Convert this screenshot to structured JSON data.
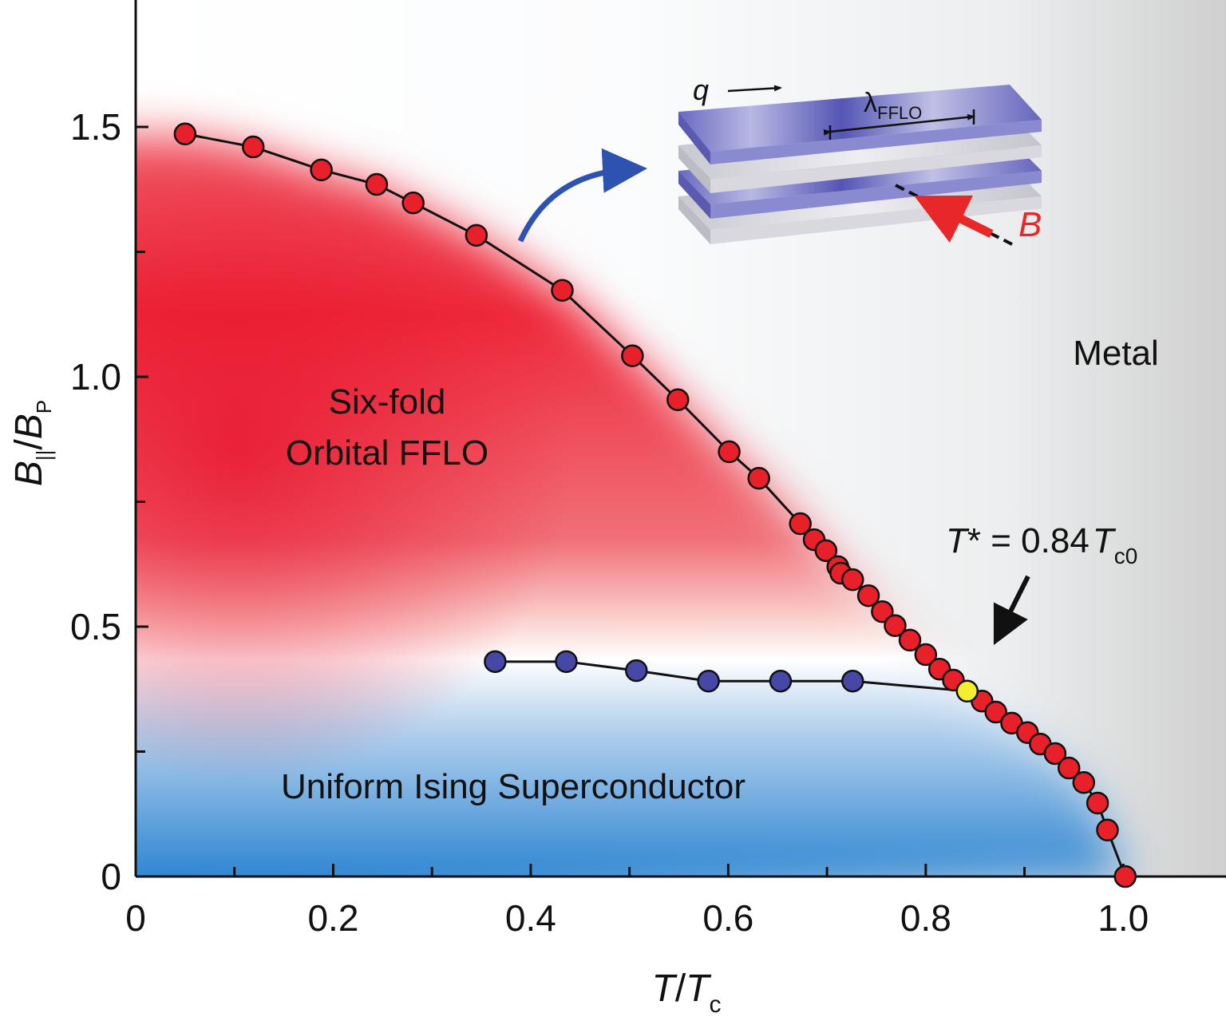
{
  "chart_data": {
    "type": "line",
    "xlabel": [
      "T",
      "/",
      "T",
      "c"
    ],
    "ylabel": [
      "B",
      "||",
      "/",
      "B",
      "P"
    ],
    "xlim": [
      0,
      1.1
    ],
    "ylim": [
      0,
      1.75
    ],
    "xticks": [
      0,
      0.2,
      0.4,
      0.6,
      0.8,
      {
        "value": 1,
        "label": "1.0"
      }
    ],
    "xminorticks": [
      0.1,
      0.3,
      0.5,
      0.7,
      0.9
    ],
    "yticks": [
      0,
      0.5,
      {
        "value": 1,
        "label": "1.0"
      },
      1.5
    ],
    "yminorticks": [
      0.25,
      0.75,
      1.25
    ],
    "series": [
      {
        "color": "#e8202a",
        "x": [
          0.05,
          0.119,
          0.188,
          0.244,
          0.281,
          0.345,
          0.432,
          0.503,
          0.549,
          0.601,
          0.631,
          0.673,
          0.687,
          0.699,
          0.711,
          0.714,
          0.726,
          0.742,
          0.756,
          0.769,
          0.784,
          0.8,
          0.814,
          0.828,
          0.857,
          0.871,
          0.887,
          0.903,
          0.916,
          0.931,
          0.945,
          0.96,
          0.974,
          0.984,
          1.002
        ],
        "values": [
          1.486,
          1.46,
          1.414,
          1.385,
          1.348,
          1.283,
          1.173,
          1.042,
          0.954,
          0.85,
          0.797,
          0.706,
          0.674,
          0.652,
          0.62,
          0.607,
          0.594,
          0.562,
          0.53,
          0.502,
          0.473,
          0.444,
          0.415,
          0.393,
          0.351,
          0.329,
          0.307,
          0.288,
          0.265,
          0.246,
          0.217,
          0.188,
          0.147,
          0.093,
          0
        ]
      },
      {
        "color": "#4747a6",
        "x": [
          0.364,
          0.436,
          0.507,
          0.58,
          0.653,
          0.726
        ],
        "values": [
          0.43,
          0.43,
          0.412,
          0.391,
          0.391,
          0.391
        ]
      },
      {
        "color": "#f4ee30",
        "x": [
          0.842
        ],
        "values": [
          0.371
        ]
      }
    ],
    "annotations": {
      "six_fold": "Six-fold",
      "orbital": "Orbital FFLO",
      "metal": "Metal",
      "uniform": "Uniform Ising Superconductor",
      "tstar": [
        "T",
        "* = 0.84",
        "T",
        "c0"
      ],
      "q": "q",
      "lambda": [
        "λ",
        "FFLO"
      ],
      "field": "B"
    }
  }
}
